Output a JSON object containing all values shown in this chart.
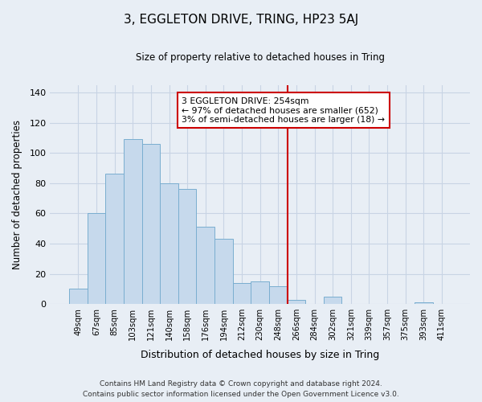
{
  "title": "3, EGGLETON DRIVE, TRING, HP23 5AJ",
  "subtitle": "Size of property relative to detached houses in Tring",
  "xlabel": "Distribution of detached houses by size in Tring",
  "ylabel": "Number of detached properties",
  "bar_labels": [
    "49sqm",
    "67sqm",
    "85sqm",
    "103sqm",
    "121sqm",
    "140sqm",
    "158sqm",
    "176sqm",
    "194sqm",
    "212sqm",
    "230sqm",
    "248sqm",
    "266sqm",
    "284sqm",
    "302sqm",
    "321sqm",
    "339sqm",
    "357sqm",
    "375sqm",
    "393sqm",
    "411sqm"
  ],
  "bar_values": [
    10,
    60,
    86,
    109,
    106,
    80,
    76,
    51,
    43,
    14,
    15,
    12,
    3,
    0,
    5,
    0,
    0,
    0,
    0,
    1,
    0
  ],
  "bar_color": "#c6d9ec",
  "bar_edge_color": "#7aaed0",
  "reference_line_x_label": "248sqm",
  "reference_line_color": "#cc0000",
  "annotation_text": "3 EGGLETON DRIVE: 254sqm\n← 97% of detached houses are smaller (652)\n3% of semi-detached houses are larger (18) →",
  "annotation_box_color": "#ffffff",
  "annotation_box_edge_color": "#cc0000",
  "ylim": [
    0,
    145
  ],
  "yticks": [
    0,
    20,
    40,
    60,
    80,
    100,
    120,
    140
  ],
  "grid_color": "#c8d4e4",
  "background_color": "#e8eef5",
  "footer_line1": "Contains HM Land Registry data © Crown copyright and database right 2024.",
  "footer_line2": "Contains public sector information licensed under the Open Government Licence v3.0."
}
